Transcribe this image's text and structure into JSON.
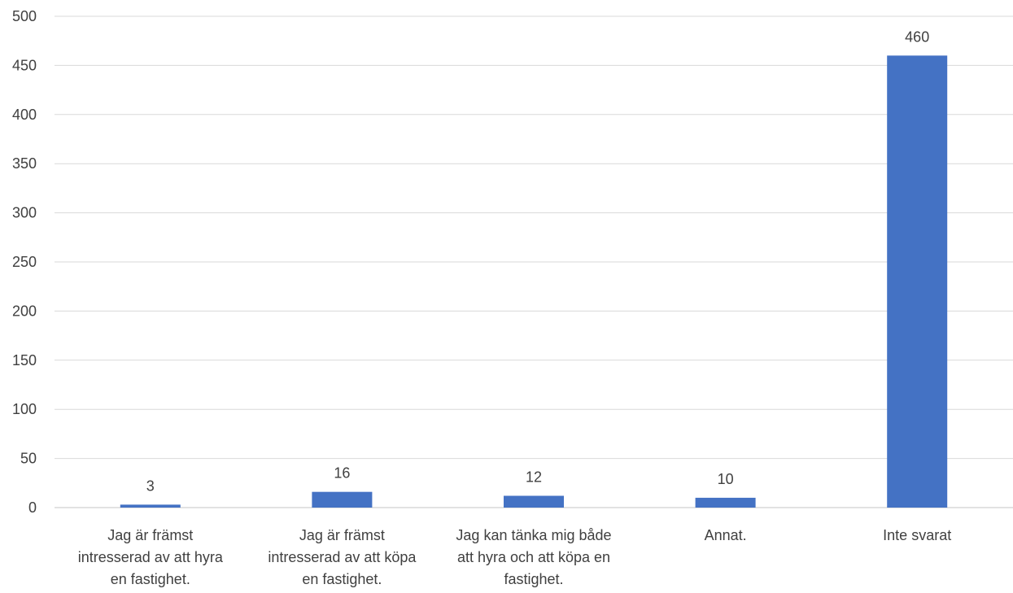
{
  "chart_data": {
    "type": "bar",
    "title": "",
    "xlabel": "",
    "ylabel": "",
    "ylim": [
      0,
      500
    ],
    "yticks": [
      0,
      50,
      100,
      150,
      200,
      250,
      300,
      350,
      400,
      450,
      500
    ],
    "grid": true,
    "legend": "none",
    "categories": [
      "Jag är främst intresserad av att hyra en fastighet.",
      "Jag är främst intresserad av att köpa en fastighet.",
      "Jag kan tänka mig både att hyra och att köpa en fastighet.",
      "Annat.",
      "Inte svarat"
    ],
    "category_lines": [
      [
        "Jag är främst",
        "intresserad av att hyra",
        "en fastighet."
      ],
      [
        "Jag är främst",
        "intresserad av att köpa",
        "en fastighet."
      ],
      [
        "Jag kan tänka mig både",
        "att hyra och att köpa en",
        "fastighet."
      ],
      [
        "Annat."
      ],
      [
        "Inte svarat"
      ]
    ],
    "values": [
      3,
      16,
      12,
      10,
      460
    ],
    "data_labels": [
      "3",
      "16",
      "12",
      "10",
      "460"
    ],
    "colors": {
      "bar": "#4472C4",
      "grid": "#D9D9D9",
      "text": "#404040"
    }
  }
}
